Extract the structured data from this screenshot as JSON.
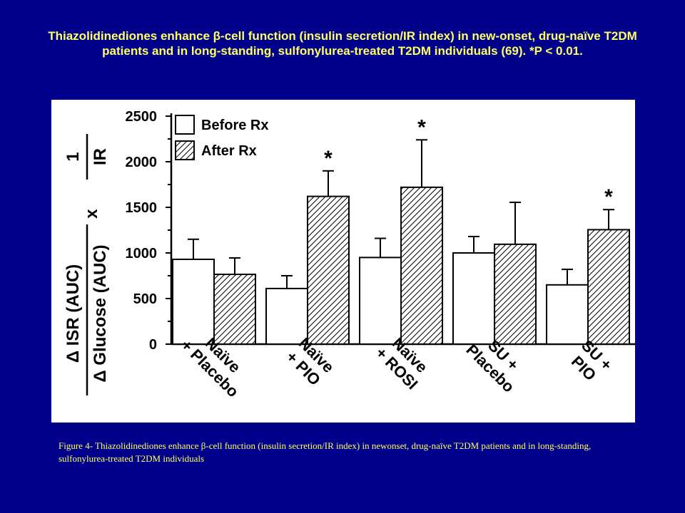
{
  "slide": {
    "title": "Thiazolidinediones enhance β-cell function (insulin secretion/IR index) in new-onset, drug-naïve T2DM patients and in long-standing, sulfonylurea-treated T2DM individuals (69). *P < 0.01.",
    "caption": "Figure 4- Thiazolidinediones enhance β-cell function  (insulin secretion/IR index) in newonset, drug-naïve T2DM patients and in long-standing, sulfonylurea-treated T2DM individuals"
  },
  "colors": {
    "background": "#00008b",
    "title_text": "#ffff66",
    "panel": "#ffffff",
    "ink": "#000000"
  },
  "chart_data": {
    "type": "bar",
    "title": "",
    "ylabel_numerator": "Δ ISR (AUC)",
    "ylabel_denominator": "Δ Glucose (AUC)",
    "ylabel_times": "x",
    "ylabel_factor_num": "1",
    "ylabel_factor_den": "IR",
    "ylim": [
      0,
      2500
    ],
    "yticks": [
      0,
      500,
      1000,
      1500,
      2000,
      2500
    ],
    "ytick_labels": [
      "0",
      "500",
      "1000",
      "1500",
      "2000",
      "2500"
    ],
    "legend_position": "top-left",
    "grid": false,
    "categories": [
      [
        "Naïve",
        "+ Placebo"
      ],
      [
        "Naïve",
        "+ PIO"
      ],
      [
        "Naïve",
        "+ ROSI"
      ],
      [
        "SU +",
        "Placebo"
      ],
      [
        "SU +",
        "PIO"
      ]
    ],
    "series": [
      {
        "name": "Before Rx",
        "pattern": "solid-white",
        "values": [
          930,
          610,
          950,
          1000,
          650
        ],
        "error": [
          220,
          140,
          210,
          180,
          170
        ]
      },
      {
        "name": "After Rx",
        "pattern": "hatched",
        "values": [
          765,
          1620,
          1720,
          1095,
          1255
        ],
        "error": [
          180,
          280,
          520,
          460,
          220
        ],
        "significance": [
          "",
          "*",
          "*",
          "",
          "*"
        ]
      }
    ]
  }
}
